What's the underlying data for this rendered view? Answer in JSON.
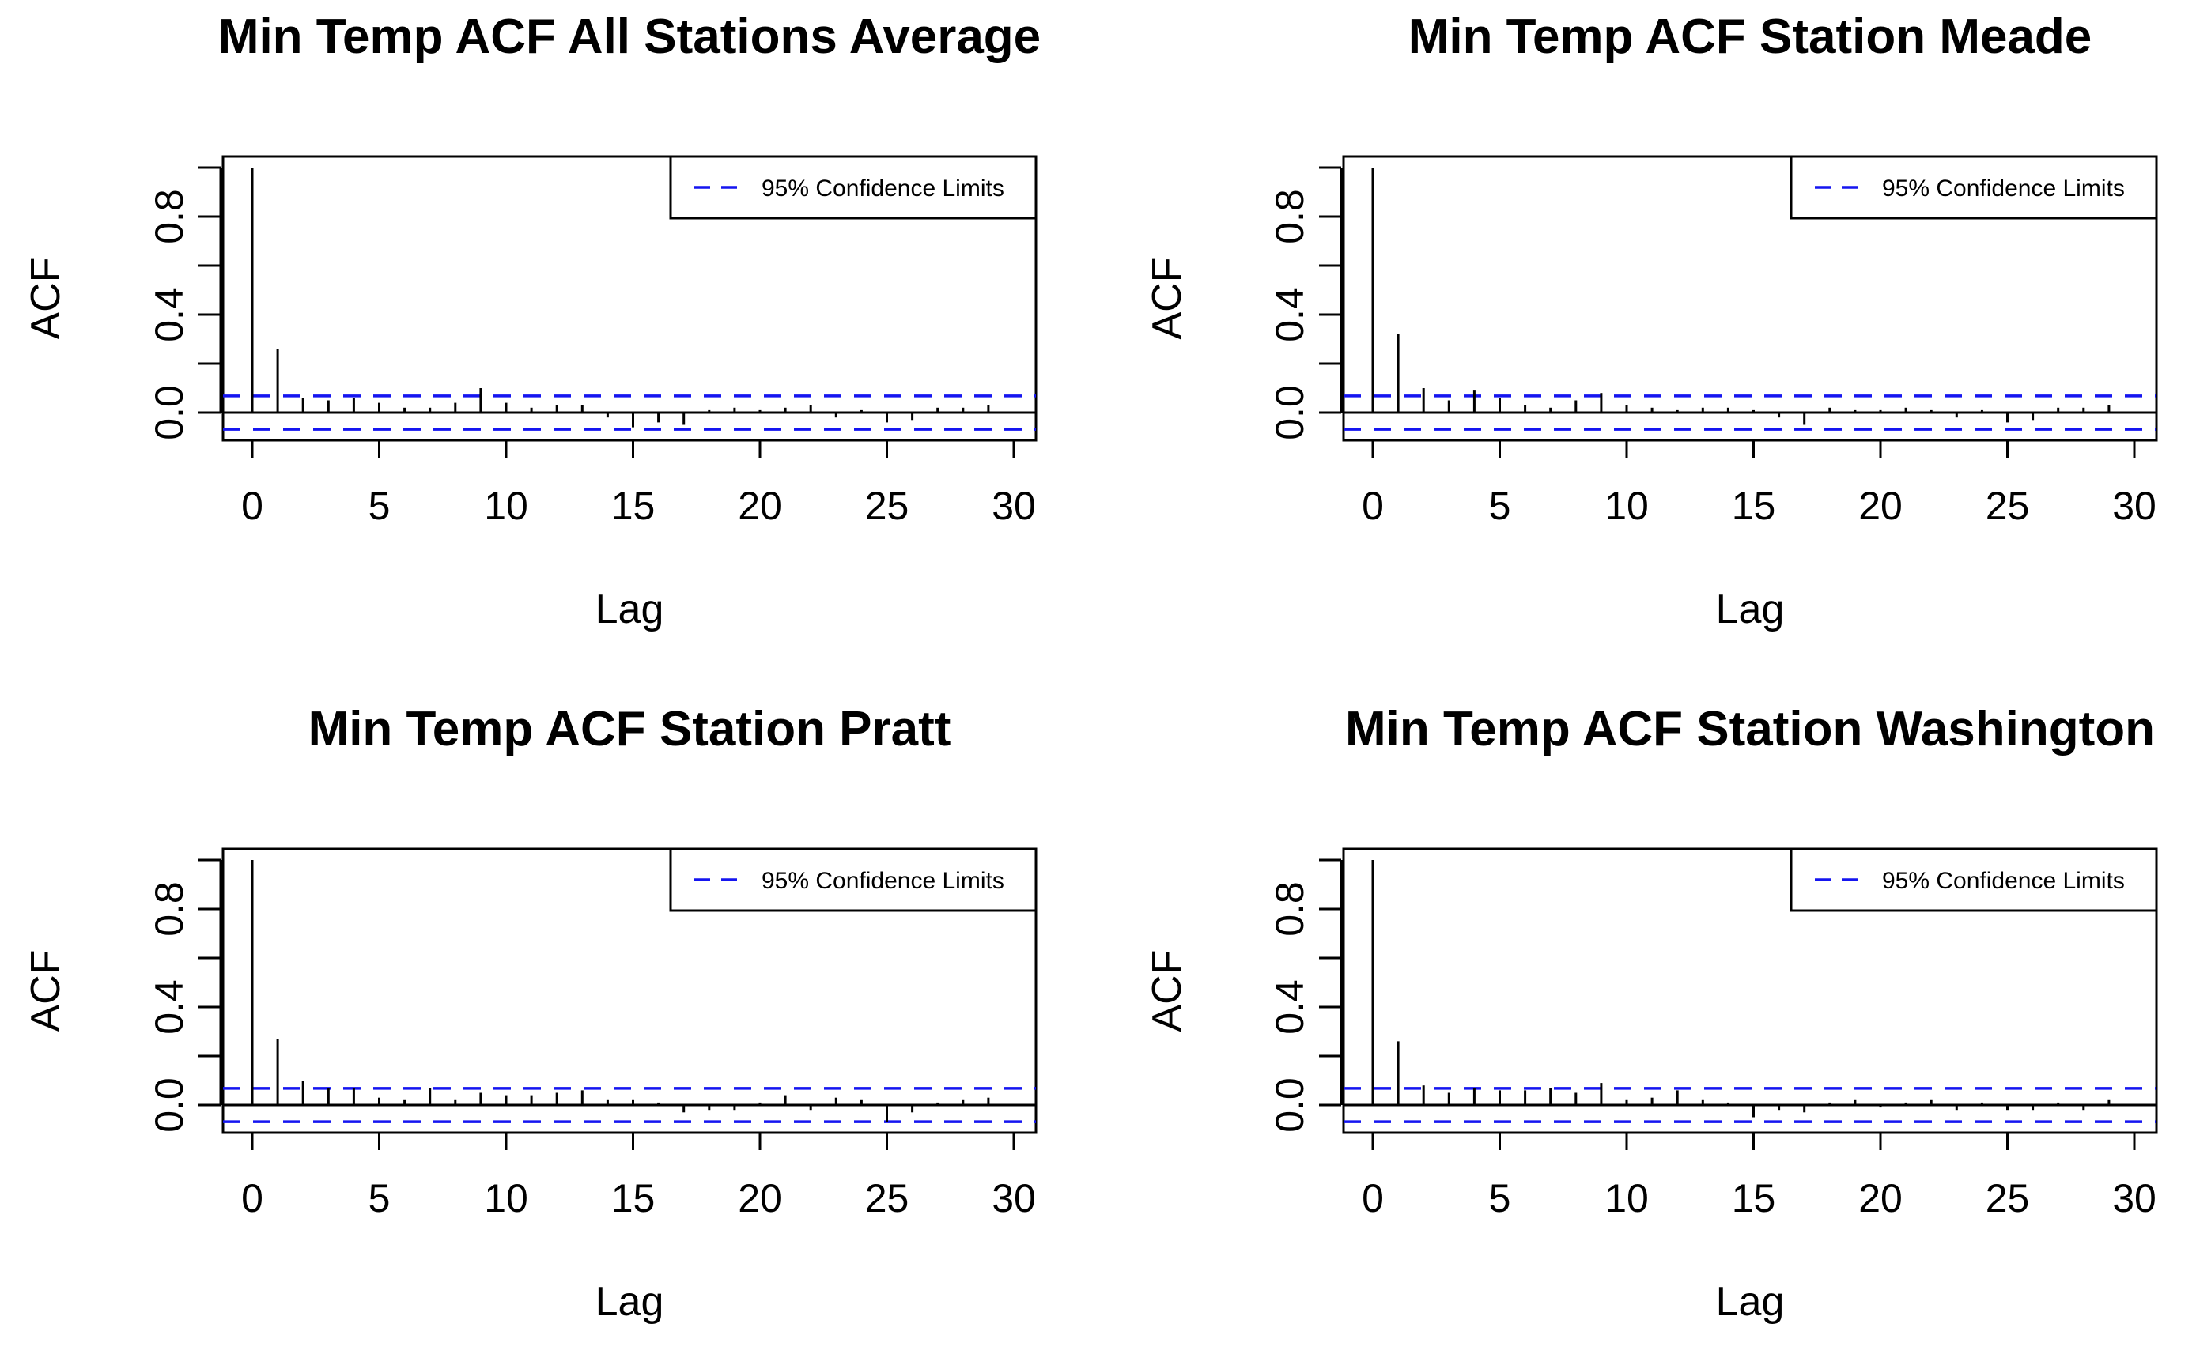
{
  "chart_data": [
    {
      "type": "bar",
      "title": "Min Temp ACF All Stations Average",
      "xlabel": "Lag",
      "ylabel": "ACF",
      "xlim": [
        -1,
        30
      ],
      "ylim": [
        -0.1,
        1.0
      ],
      "x_ticks": [
        "0",
        "5",
        "10",
        "15",
        "20",
        "25",
        "30"
      ],
      "y_ticks": [
        "0.0",
        "0.4",
        "0.8"
      ],
      "confidence_limit": 0.068,
      "legend": "95% Confidence Limits",
      "legend_position": "top-right",
      "lags": [
        0,
        1,
        2,
        3,
        4,
        5,
        6,
        7,
        8,
        9,
        10,
        11,
        12,
        13,
        14,
        15,
        16,
        17,
        18,
        19,
        20,
        21,
        22,
        23,
        24,
        25,
        26,
        27,
        28,
        29
      ],
      "values": [
        1.0,
        0.26,
        0.06,
        0.05,
        0.06,
        0.04,
        0.02,
        0.02,
        0.04,
        0.1,
        0.04,
        0.02,
        0.03,
        0.03,
        -0.02,
        -0.06,
        -0.04,
        -0.05,
        0.01,
        0.02,
        0.01,
        0.02,
        0.03,
        -0.02,
        0.01,
        -0.04,
        -0.03,
        0.02,
        0.02,
        0.03
      ]
    },
    {
      "type": "bar",
      "title": "Min Temp ACF Station Meade",
      "xlabel": "Lag",
      "ylabel": "ACF",
      "xlim": [
        -1,
        30
      ],
      "ylim": [
        -0.1,
        1.0
      ],
      "x_ticks": [
        "0",
        "5",
        "10",
        "15",
        "20",
        "25",
        "30"
      ],
      "y_ticks": [
        "0.0",
        "0.4",
        "0.8"
      ],
      "confidence_limit": 0.068,
      "legend": "95% Confidence Limits",
      "legend_position": "top-right",
      "lags": [
        0,
        1,
        2,
        3,
        4,
        5,
        6,
        7,
        8,
        9,
        10,
        11,
        12,
        13,
        14,
        15,
        16,
        17,
        18,
        19,
        20,
        21,
        22,
        23,
        24,
        25,
        26,
        27,
        28,
        29
      ],
      "values": [
        1.0,
        0.32,
        0.1,
        0.05,
        0.09,
        0.06,
        0.03,
        0.02,
        0.05,
        0.08,
        0.03,
        0.02,
        0.01,
        0.02,
        0.02,
        0.01,
        -0.02,
        -0.05,
        0.02,
        0.01,
        0.01,
        0.02,
        0.01,
        -0.02,
        0.01,
        -0.04,
        -0.03,
        0.02,
        0.02,
        0.03
      ]
    },
    {
      "type": "bar",
      "title": "Min Temp ACF Station Pratt",
      "xlabel": "Lag",
      "ylabel": "ACF",
      "xlim": [
        -1,
        30
      ],
      "ylim": [
        -0.1,
        1.0
      ],
      "x_ticks": [
        "0",
        "5",
        "10",
        "15",
        "20",
        "25",
        "30"
      ],
      "y_ticks": [
        "0.0",
        "0.4",
        "0.8"
      ],
      "confidence_limit": 0.068,
      "legend": "95% Confidence Limits",
      "legend_position": "top-right",
      "lags": [
        0,
        1,
        2,
        3,
        4,
        5,
        6,
        7,
        8,
        9,
        10,
        11,
        12,
        13,
        14,
        15,
        16,
        17,
        18,
        19,
        20,
        21,
        22,
        23,
        24,
        25,
        26,
        27,
        28,
        29
      ],
      "values": [
        1.0,
        0.27,
        0.1,
        0.07,
        0.07,
        0.03,
        0.02,
        0.07,
        0.02,
        0.05,
        0.04,
        0.04,
        0.05,
        0.06,
        0.02,
        0.02,
        0.01,
        -0.03,
        -0.02,
        -0.02,
        0.01,
        0.04,
        -0.02,
        0.03,
        0.02,
        -0.07,
        -0.03,
        0.01,
        0.02,
        0.03
      ]
    },
    {
      "type": "bar",
      "title": "Min Temp ACF Station Washington",
      "xlabel": "Lag",
      "ylabel": "ACF",
      "xlim": [
        -1,
        30
      ],
      "ylim": [
        -0.1,
        1.0
      ],
      "x_ticks": [
        "0",
        "5",
        "10",
        "15",
        "20",
        "25",
        "30"
      ],
      "y_ticks": [
        "0.0",
        "0.4",
        "0.8"
      ],
      "confidence_limit": 0.068,
      "legend": "95% Confidence Limits",
      "legend_position": "top-right",
      "lags": [
        0,
        1,
        2,
        3,
        4,
        5,
        6,
        7,
        8,
        9,
        10,
        11,
        12,
        13,
        14,
        15,
        16,
        17,
        18,
        19,
        20,
        21,
        22,
        23,
        24,
        25,
        26,
        27,
        28,
        29
      ],
      "values": [
        1.0,
        0.26,
        0.08,
        0.05,
        0.07,
        0.06,
        0.06,
        0.07,
        0.05,
        0.09,
        0.02,
        0.03,
        0.06,
        0.02,
        0.01,
        -0.05,
        -0.02,
        -0.03,
        0.01,
        0.02,
        -0.01,
        0.01,
        0.02,
        -0.02,
        0.01,
        -0.02,
        -0.02,
        0.01,
        -0.02,
        0.02
      ]
    }
  ]
}
